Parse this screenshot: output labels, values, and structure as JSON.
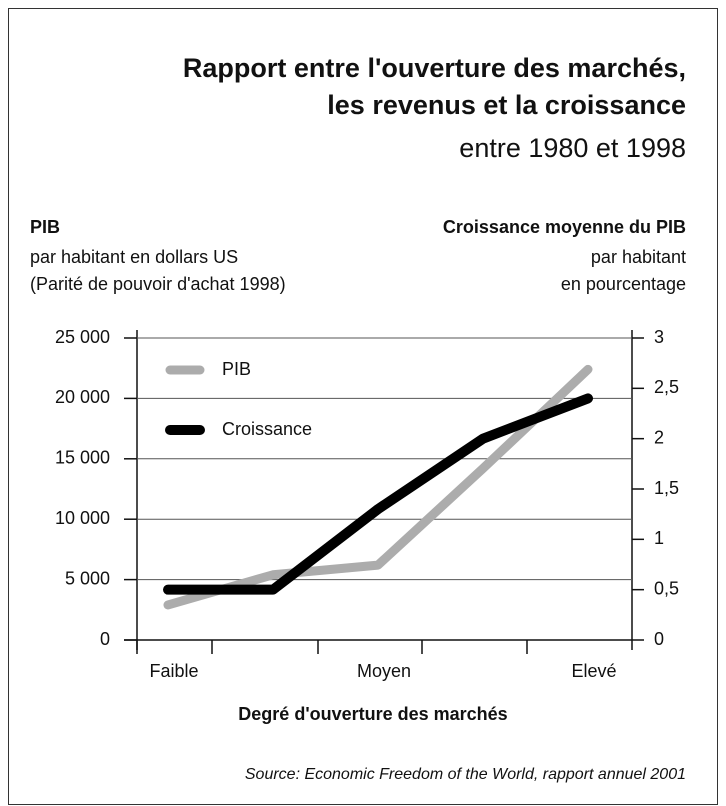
{
  "chart_data": {
    "type": "line",
    "title": [
      "Rapport entre l'ouverture des marchés,",
      "les revenus et la croissance"
    ],
    "subtitle": "entre 1980 et 1998",
    "y_label": {
      "title": "PIB",
      "lines": [
        "par habitant  en dollars US",
        "(Parité de pouvoir d'achat 1998)"
      ]
    },
    "y2_label": {
      "title": "Croissance moyenne du PIB",
      "lines": [
        "par habitant",
        "en pourcentage"
      ]
    },
    "x_label": "Degré d'ouverture des marchés",
    "source": "Source: Economic Freedom of the World, rapport annuel 2001",
    "categories": [
      "Faible",
      null,
      "Moyen",
      null,
      "Elevé"
    ],
    "series": [
      {
        "name": "PIB",
        "color": "#acacac",
        "values": [
          2900,
          5400,
          6200,
          14200,
          22400
        ]
      },
      {
        "name": "Croissance",
        "color": "#000000",
        "axis": "y2",
        "values": [
          0.5,
          0.5,
          1.3,
          2.0,
          2.4
        ]
      }
    ],
    "ylim": [
      0,
      25000
    ],
    "yticks": [
      0,
      {
        "value": 5000,
        "label": "5 000"
      },
      {
        "value": 10000,
        "label": "10 000"
      },
      {
        "value": 15000,
        "label": "15 000"
      },
      {
        "value": 20000,
        "label": "20 000"
      },
      {
        "value": 25000,
        "label": "25 000"
      }
    ],
    "y2lim": [
      0,
      3
    ],
    "y2ticks": [
      0,
      {
        "value": 0.5,
        "label": "0,5"
      },
      1,
      {
        "value": 1.5,
        "label": "1,5"
      },
      2,
      {
        "value": 2.5,
        "label": "2,5"
      },
      3
    ],
    "grid": true
  }
}
